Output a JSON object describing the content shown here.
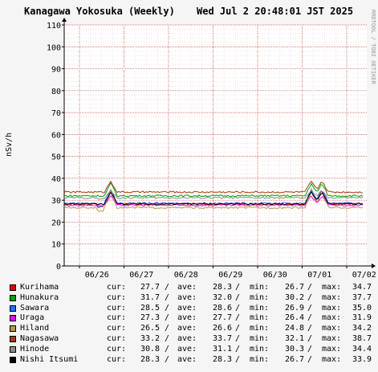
{
  "chart_data": {
    "type": "line",
    "title": "Kanagawa Yokosuka (Weekly)",
    "timestamp": "Wed Jul  2 20:48:01 JST 2025",
    "side_credit": "RRDTOOL / TOBI OETIKER",
    "ylabel": "nSv/h",
    "ylim": [
      0,
      110
    ],
    "yticks": [
      "0",
      "10",
      "20",
      "30",
      "40",
      "50",
      "60",
      "70",
      "80",
      "90",
      "100",
      "110"
    ],
    "xticks": [
      "06/26",
      "06/27",
      "06/28",
      "06/29",
      "06/30",
      "07/01",
      "07/02"
    ],
    "grid": true,
    "legend_position": "bottom",
    "stat_labels": {
      "cur": "cur:",
      "ave": "ave:",
      "min": "min:",
      "max": "max:"
    },
    "series": [
      {
        "name": "Kurihama",
        "color": "#e00000",
        "cur": "27.7",
        "ave": "28.3",
        "min": "26.7",
        "max": "34.7"
      },
      {
        "name": "Hunakura",
        "color": "#00a000",
        "cur": "31.7",
        "ave": "32.0",
        "min": "30.2",
        "max": "37.7"
      },
      {
        "name": "Sawara",
        "color": "#1e74ff",
        "cur": "28.5",
        "ave": "28.6",
        "min": "26.9",
        "max": "35.0"
      },
      {
        "name": "Uraga",
        "color": "#ff00ff",
        "cur": "27.3",
        "ave": "27.7",
        "min": "26.4",
        "max": "31.9"
      },
      {
        "name": "Hiland",
        "color": "#b0a040",
        "cur": "26.5",
        "ave": "26.6",
        "min": "24.8",
        "max": "34.2"
      },
      {
        "name": "Nagasawa",
        "color": "#a03c14",
        "cur": "33.2",
        "ave": "33.7",
        "min": "32.1",
        "max": "38.7"
      },
      {
        "name": "Hinode",
        "color": "#8c8c8c",
        "cur": "30.8",
        "ave": "31.1",
        "min": "30.3",
        "max": "34.4"
      },
      {
        "name": "Nishi Itsumi",
        "color": "#000000",
        "cur": "28.3",
        "ave": "28.3",
        "min": "26.7",
        "max": "33.9"
      }
    ]
  }
}
